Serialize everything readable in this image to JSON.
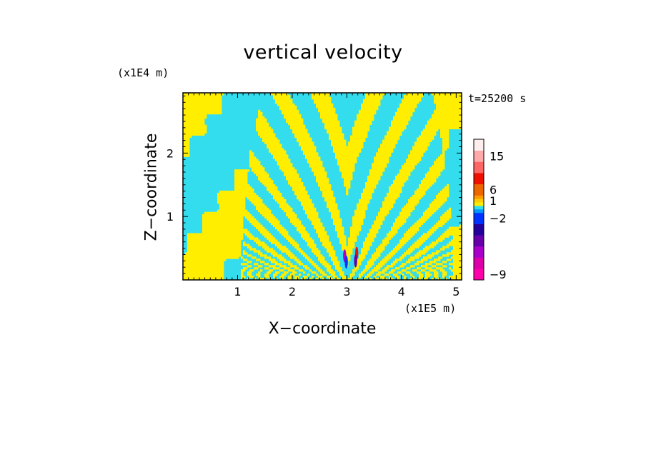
{
  "chart_data": {
    "type": "heatmap",
    "title": "vertical velocity",
    "xlabel": "X−coordinate",
    "ylabel": "Z−coordinate",
    "x_scale_label": "(x1E5 m)",
    "z_scale_label": "(x1E4 m)",
    "time_label": "t=25200 s",
    "xlim": [
      0.0,
      5.1
    ],
    "ylim": [
      0.0,
      2.95
    ],
    "x_ticks": [
      "1",
      "2",
      "3",
      "4",
      "5"
    ],
    "y_ticks": [
      "1",
      "2"
    ],
    "colors": {
      "negative_small": "#33ddee",
      "positive_small": "#ffee00"
    },
    "colorbar": {
      "levels": [
        {
          "color": "#ff00aa",
          "label": "−9"
        },
        {
          "color": "#dd00aa",
          "label": ""
        },
        {
          "color": "#aa00cc",
          "label": ""
        },
        {
          "color": "#6600aa",
          "label": ""
        },
        {
          "color": "#220099",
          "label": ""
        },
        {
          "color": "#0033ff",
          "label": "−2"
        },
        {
          "color": "#0099ff",
          "label": ""
        },
        {
          "color": "#33ddee",
          "label": ""
        },
        {
          "color": "#ffee00",
          "label": ""
        },
        {
          "color": "#ffcc00",
          "label": "1"
        },
        {
          "color": "#ff9900",
          "label": ""
        },
        {
          "color": "#ee6600",
          "label": "6"
        },
        {
          "color": "#ee1100",
          "label": ""
        },
        {
          "color": "#ff6666",
          "label": ""
        },
        {
          "color": "#ffaaaa",
          "label": "15"
        },
        {
          "color": "#ffeeee",
          "label": ""
        }
      ]
    }
  }
}
